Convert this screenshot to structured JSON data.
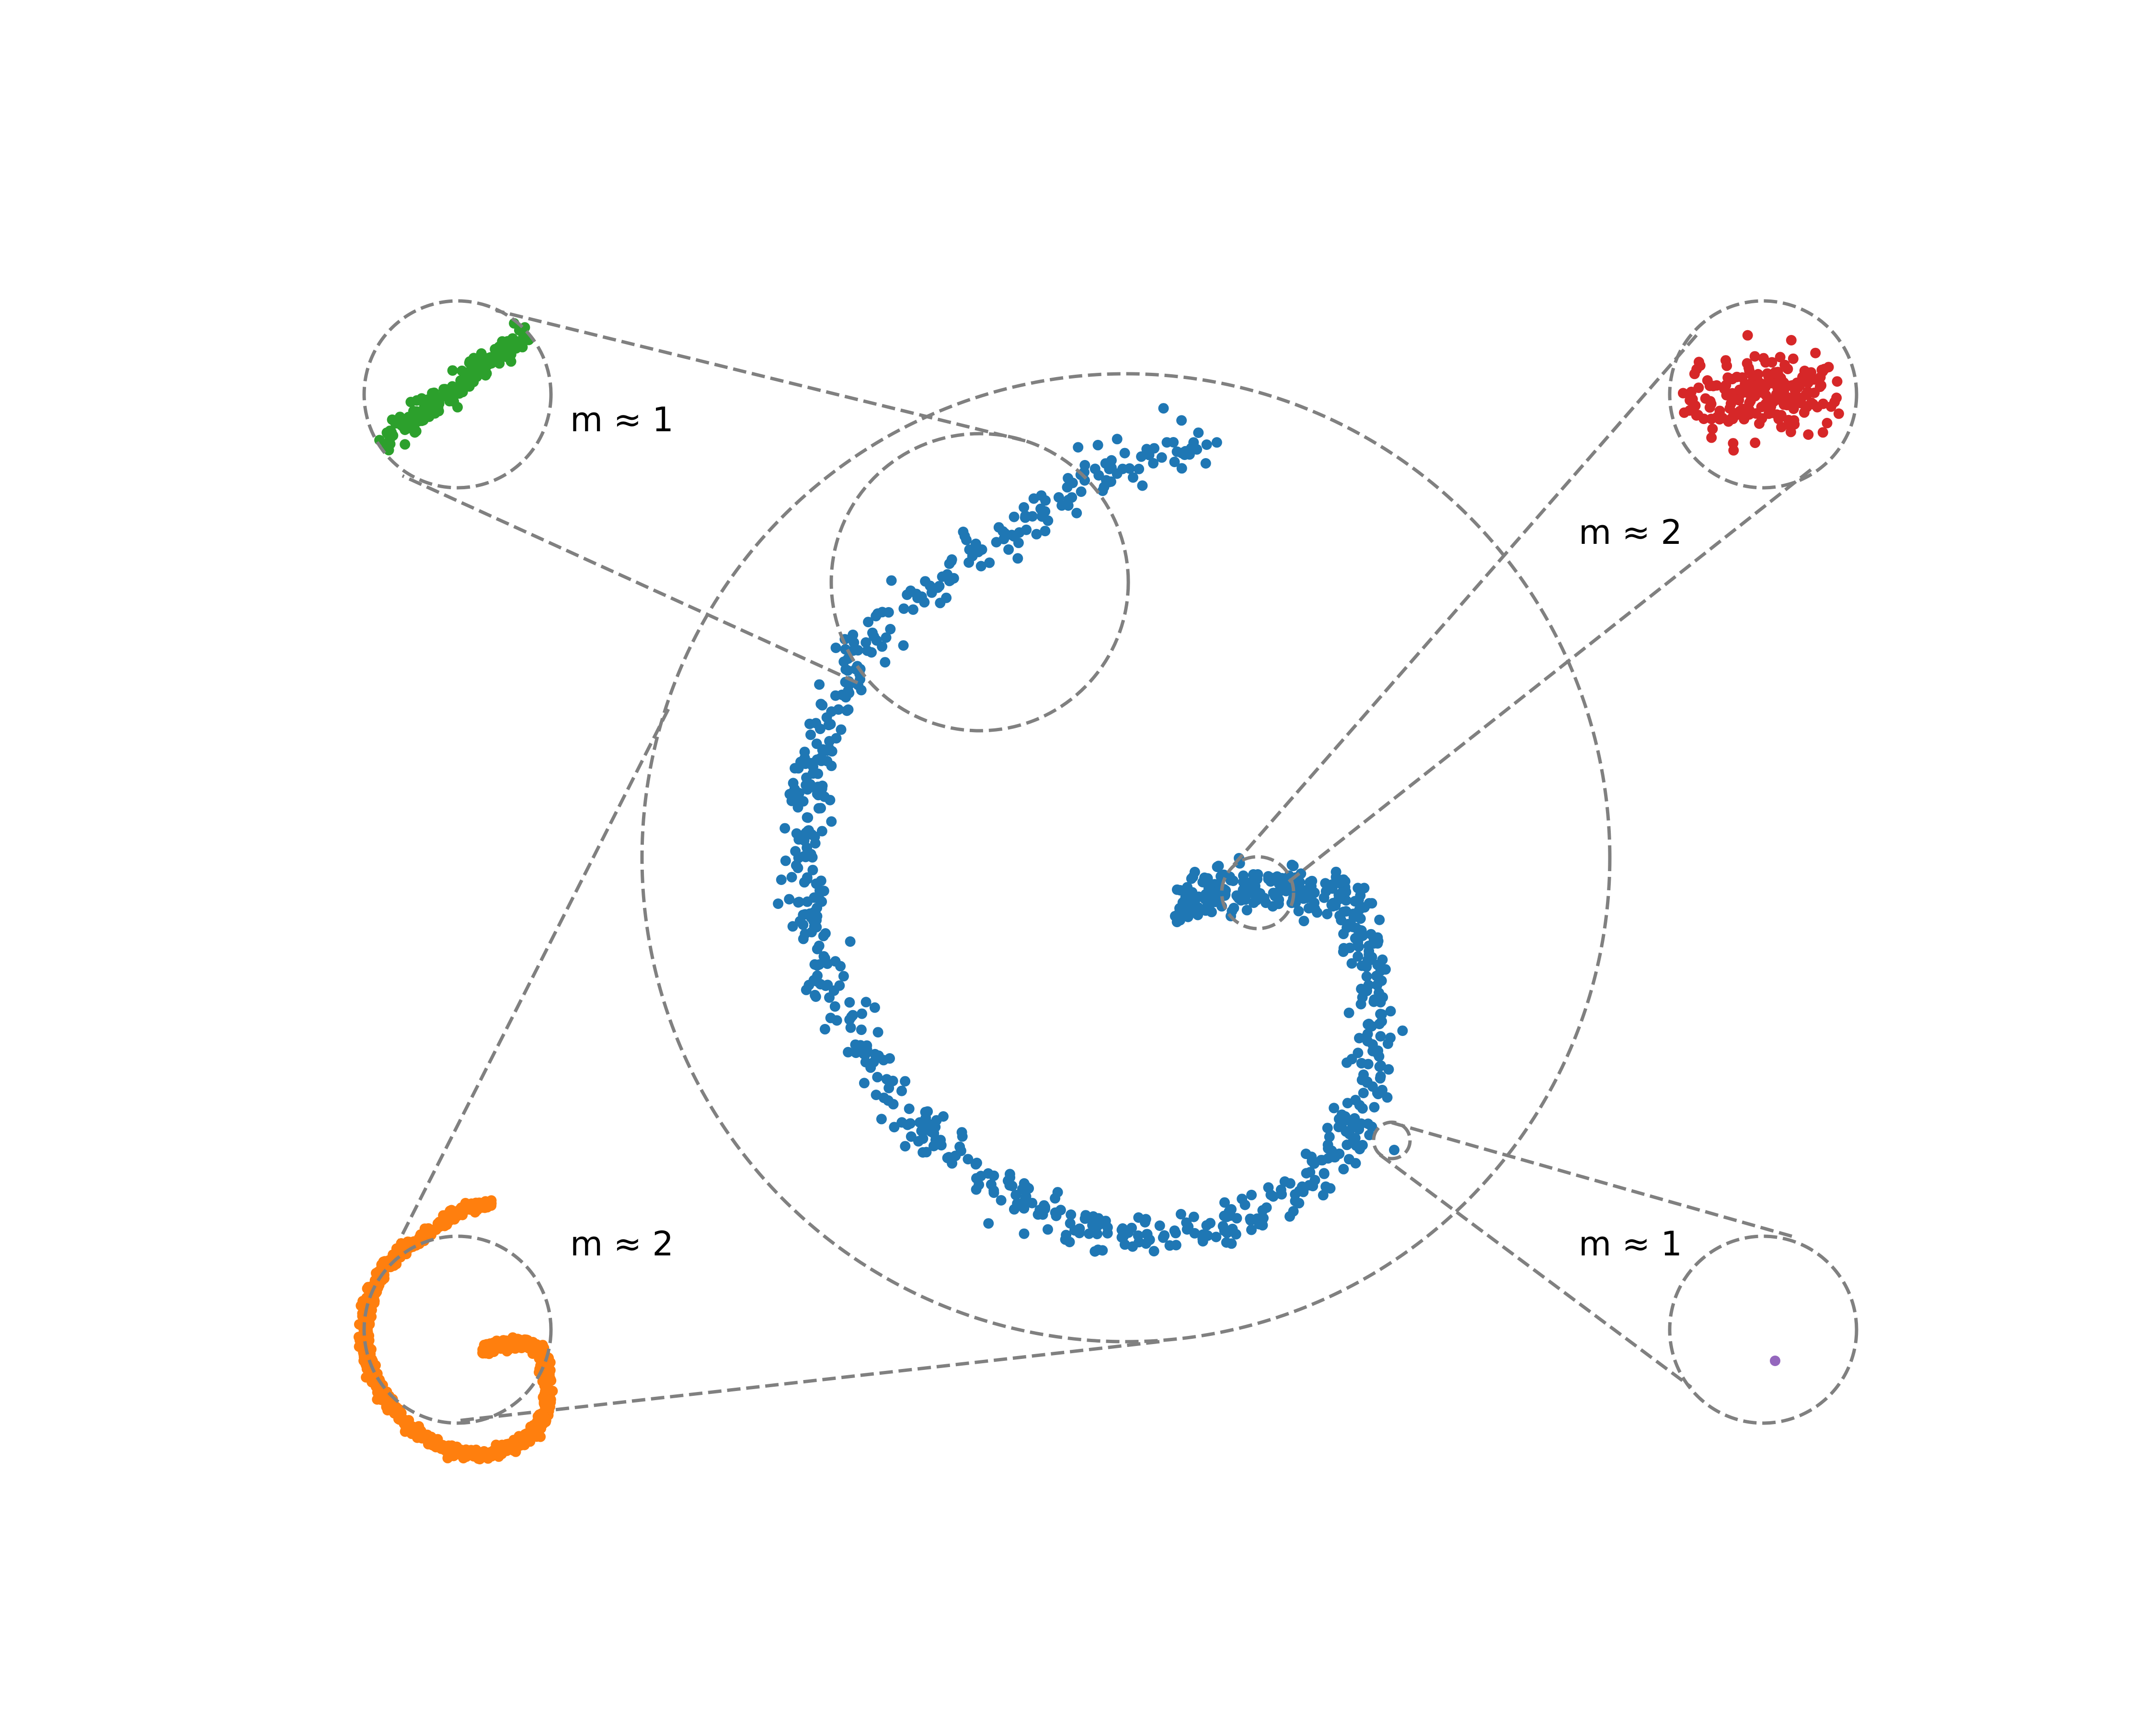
{
  "colors": {
    "main": "#1f77b4",
    "zoom_large": "#ff7f0e",
    "zoom_medium": "#2ca02c",
    "zoom_small": "#d62728",
    "zoom_tiny": "#9467bd",
    "guide": "#808080"
  },
  "labels": {
    "top_left": "m ≈ 1",
    "top_right": "m ≈ 2",
    "bottom_left": "m ≈ 2",
    "bottom_right": "m ≈ 1"
  }
}
